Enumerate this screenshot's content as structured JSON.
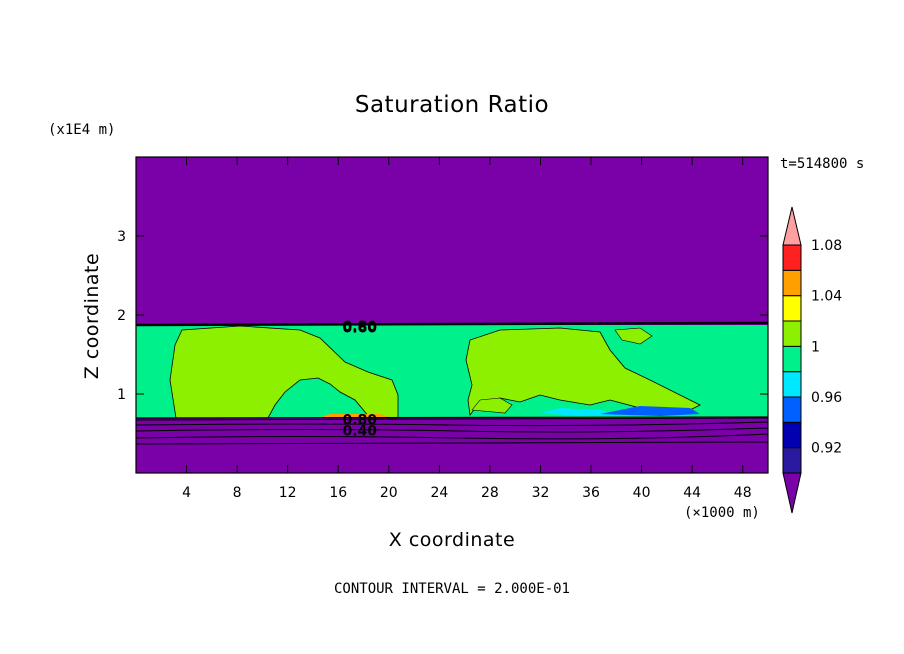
{
  "chart_data": {
    "type": "heatmap",
    "title": "Saturation Ratio",
    "xlabel": "X coordinate",
    "ylabel": "Z coordinate",
    "x_unit": "(×1000 m)",
    "y_unit": "(x1E4 m)",
    "time_label": "t=514800 s",
    "footer": "CONTOUR INTERVAL = 2.000E-01",
    "xlim": [
      0,
      50
    ],
    "ylim": [
      0,
      4
    ],
    "x_ticks": [
      "4",
      "8",
      "12",
      "16",
      "20",
      "24",
      "28",
      "32",
      "36",
      "40",
      "44",
      "48"
    ],
    "x_tick_values": [
      4,
      8,
      12,
      16,
      20,
      24,
      28,
      32,
      36,
      40,
      44,
      48
    ],
    "y_ticks": [
      "1",
      "2",
      "3"
    ],
    "y_tick_values": [
      1,
      2,
      3
    ],
    "contour_labels": [
      {
        "text": "0.80",
        "x": 17.7,
        "z": 1.86
      },
      {
        "text": "0.60",
        "x": 17.7,
        "z": 1.84
      },
      {
        "text": "0.80",
        "x": 17.7,
        "z": 0.68
      },
      {
        "text": "0.40",
        "x": 17.7,
        "z": 0.54
      }
    ],
    "colorbar": {
      "levels": [
        {
          "label": "",
          "color": "#7a00a8"
        },
        {
          "label": "0.92",
          "color": "#2a1aa0"
        },
        {
          "label": "",
          "color": "#0000b0"
        },
        {
          "label": "0.96",
          "color": "#0060ff"
        },
        {
          "label": "",
          "color": "#00e8ff"
        },
        {
          "label": "1",
          "color": "#00f08c"
        },
        {
          "label": "",
          "color": "#8cf000"
        },
        {
          "label": "1.04",
          "color": "#ffff00"
        },
        {
          "label": "",
          "color": "#ffa000"
        },
        {
          "label": "1.08",
          "color": "#ff2020"
        },
        {
          "label": "",
          "color": "#ffa0a0"
        }
      ]
    },
    "regions": {
      "background_color": "#7a00a8",
      "saturated_layer": {
        "z_bottom": 0.7,
        "z_top": 1.88,
        "color": "#00f08c"
      },
      "above_one_color": "#8cf000"
    }
  }
}
